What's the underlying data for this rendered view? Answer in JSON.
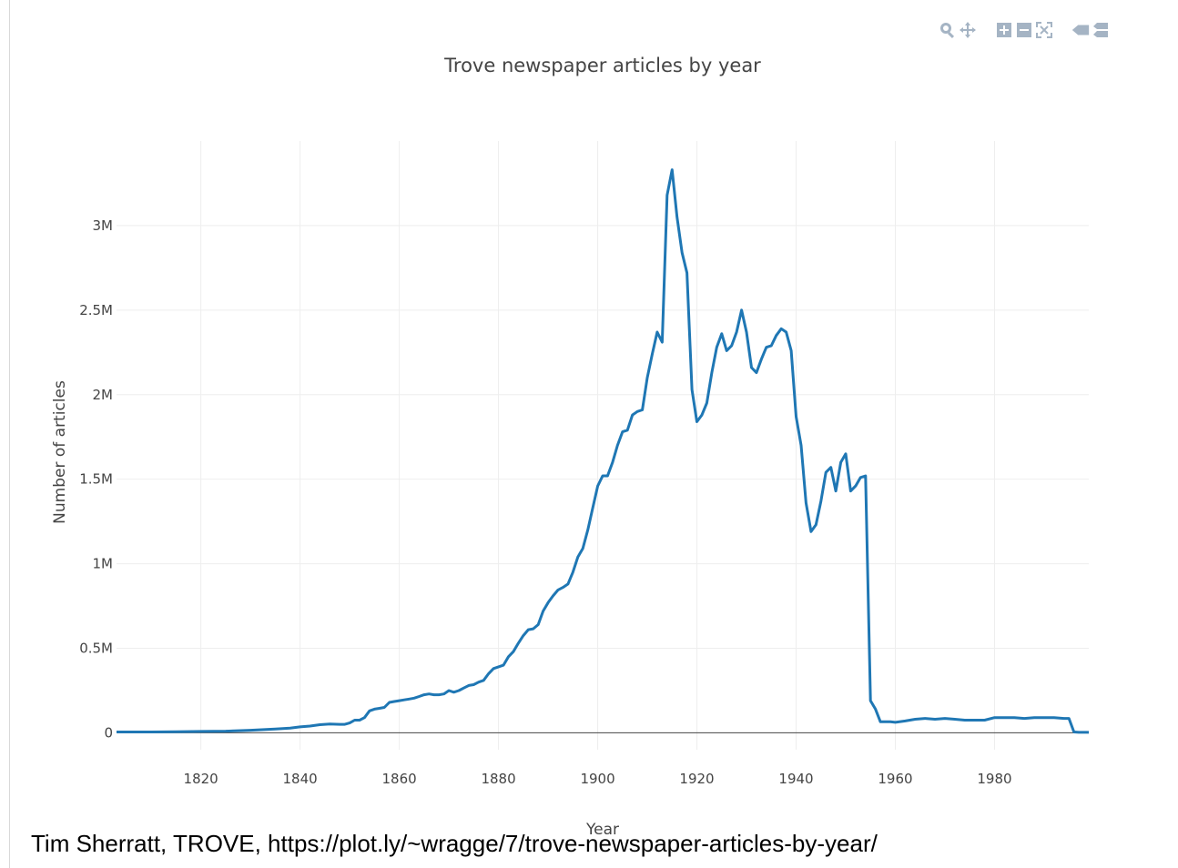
{
  "modebar": {
    "buttons": [
      {
        "name": "zoom-icon"
      },
      {
        "name": "pan-icon"
      },
      {
        "name": "zoom-in-icon"
      },
      {
        "name": "zoom-out-icon"
      },
      {
        "name": "autoscale-icon"
      },
      {
        "name": "hover-closest-icon"
      },
      {
        "name": "hover-compare-icon"
      }
    ],
    "icon_color": "#a5b4c4"
  },
  "credit": "Tim Sherratt, TROVE, https://plot.ly/~wragge/7/trove-newspaper-articles-by-year/",
  "chart_data": {
    "type": "line",
    "title": "Trove newspaper articles by year",
    "xlabel": "Year",
    "ylabel": "Number of articles",
    "xlim": [
      1803,
      1999
    ],
    "ylim": [
      -0.1,
      3.5
    ],
    "xticks": [
      1820,
      1840,
      1860,
      1880,
      1900,
      1920,
      1940,
      1960,
      1980
    ],
    "xtick_labels": [
      "1820",
      "1840",
      "1860",
      "1880",
      "1900",
      "1920",
      "1940",
      "1960",
      "1980"
    ],
    "yticks": [
      0,
      0.5,
      1,
      1.5,
      2,
      2.5,
      3
    ],
    "ytick_labels": [
      "0",
      "0.5M",
      "1M",
      "1.5M",
      "2M",
      "2.5M",
      "3M"
    ],
    "grid": true,
    "line_color": "#1f77b4",
    "series": [
      {
        "x": [
          1803,
          1810,
          1815,
          1820,
          1825,
          1830,
          1835,
          1838,
          1840,
          1842,
          1844,
          1846,
          1848,
          1849,
          1850,
          1851,
          1852,
          1853,
          1854,
          1855,
          1856,
          1857,
          1858,
          1859,
          1860,
          1861,
          1862,
          1863,
          1864,
          1865,
          1866,
          1867,
          1868,
          1869,
          1870,
          1871,
          1872,
          1873,
          1874,
          1875,
          1876,
          1877,
          1878,
          1879,
          1880,
          1881,
          1882,
          1883,
          1884,
          1885,
          1886,
          1887,
          1888,
          1889,
          1890,
          1891,
          1892,
          1893,
          1894,
          1895,
          1896,
          1897,
          1898,
          1899,
          1900,
          1901,
          1902,
          1903,
          1904,
          1905,
          1906,
          1907,
          1908,
          1909,
          1910,
          1911,
          1912,
          1913,
          1914,
          1915,
          1916,
          1917,
          1918,
          1919,
          1920,
          1921,
          1922,
          1923,
          1924,
          1925,
          1926,
          1927,
          1928,
          1929,
          1930,
          1931,
          1932,
          1933,
          1934,
          1935,
          1936,
          1937,
          1938,
          1939,
          1940,
          1941,
          1942,
          1943,
          1944,
          1945,
          1946,
          1947,
          1948,
          1949,
          1950,
          1951,
          1952,
          1953,
          1954,
          1955,
          1956,
          1957,
          1958,
          1959,
          1960,
          1962,
          1964,
          1966,
          1968,
          1970,
          1972,
          1974,
          1976,
          1978,
          1980,
          1982,
          1984,
          1986,
          1988,
          1990,
          1992,
          1994,
          1995,
          1996,
          1997,
          1998,
          1999
        ],
        "y": [
          0.005,
          0.005,
          0.006,
          0.008,
          0.01,
          0.015,
          0.022,
          0.028,
          0.035,
          0.04,
          0.048,
          0.052,
          0.05,
          0.05,
          0.058,
          0.075,
          0.075,
          0.09,
          0.13,
          0.14,
          0.145,
          0.15,
          0.18,
          0.185,
          0.19,
          0.195,
          0.2,
          0.205,
          0.215,
          0.225,
          0.23,
          0.225,
          0.225,
          0.23,
          0.25,
          0.24,
          0.25,
          0.265,
          0.28,
          0.285,
          0.3,
          0.31,
          0.35,
          0.38,
          0.39,
          0.4,
          0.45,
          0.48,
          0.53,
          0.575,
          0.61,
          0.615,
          0.64,
          0.72,
          0.77,
          0.81,
          0.845,
          0.86,
          0.88,
          0.95,
          1.04,
          1.09,
          1.2,
          1.33,
          1.46,
          1.52,
          1.52,
          1.6,
          1.7,
          1.78,
          1.79,
          1.88,
          1.9,
          1.91,
          2.1,
          2.24,
          2.37,
          2.31,
          3.18,
          3.33,
          3.05,
          2.84,
          2.72,
          2.03,
          1.84,
          1.88,
          1.95,
          2.13,
          2.28,
          2.36,
          2.26,
          2.29,
          2.37,
          2.5,
          2.37,
          2.16,
          2.13,
          2.21,
          2.28,
          2.29,
          2.35,
          2.39,
          2.37,
          2.26,
          1.87,
          1.7,
          1.36,
          1.19,
          1.23,
          1.37,
          1.54,
          1.57,
          1.43,
          1.6,
          1.65,
          1.43,
          1.46,
          1.51,
          1.52,
          0.19,
          0.14,
          0.065,
          0.065,
          0.065,
          0.062,
          0.07,
          0.08,
          0.085,
          0.08,
          0.085,
          0.08,
          0.075,
          0.075,
          0.075,
          0.09,
          0.09,
          0.09,
          0.085,
          0.09,
          0.09,
          0.09,
          0.085,
          0.085,
          0.005,
          0.003,
          0.003,
          0.003
        ]
      }
    ]
  }
}
